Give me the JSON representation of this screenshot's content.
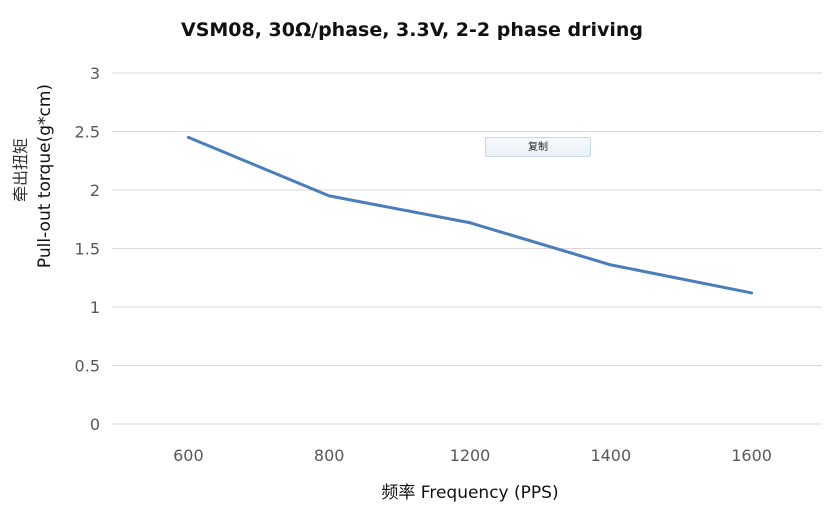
{
  "chart_data": {
    "type": "line",
    "title": "VSM08, 30Ω/phase, 3.3V, 2-2 phase driving",
    "xlabel": "频率 Frequency (PPS)",
    "ylabel_line1": "牵出扭矩",
    "ylabel_line2": "Pull-out torque(g*cm)",
    "categories": [
      "600",
      "800",
      "1200",
      "1400",
      "1600"
    ],
    "values": [
      2.45,
      1.95,
      1.72,
      1.36,
      1.12
    ],
    "ylim": [
      0,
      3
    ],
    "yticks": [
      "0",
      "0.5",
      "1",
      "1.5",
      "2",
      "2.5",
      "3"
    ],
    "grid": true,
    "line_color": "#4a7ebb",
    "legend": "none"
  },
  "overlay": {
    "copy_label": "复制"
  }
}
